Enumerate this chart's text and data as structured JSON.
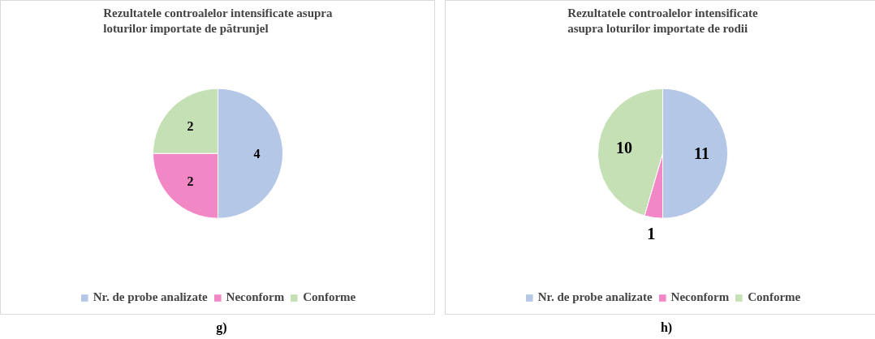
{
  "chart_data": [
    {
      "type": "pie",
      "title": "Rezultatele controalelor intensificate asupra loturilor importate de pătrunjel",
      "categories": [
        "Nr. de probe analizate",
        "Neconform",
        "Conforme"
      ],
      "values": [
        4,
        2,
        2
      ],
      "colors": [
        "#b4c7e7",
        "#f287c6",
        "#c5e0b4"
      ],
      "data_labels": true,
      "legend": "bottom",
      "annotations": [
        "g)"
      ]
    },
    {
      "type": "pie",
      "title": "Rezultatele controalelor intensificate asupra loturilor importate de rodii",
      "categories": [
        "Nr. de probe analizate",
        "Neconform",
        "Conforme"
      ],
      "values": [
        11,
        1,
        10
      ],
      "colors": [
        "#b4c7e7",
        "#f287c6",
        "#c5e0b4"
      ],
      "data_labels": true,
      "legend": "bottom",
      "annotations": [
        "h)"
      ]
    }
  ]
}
